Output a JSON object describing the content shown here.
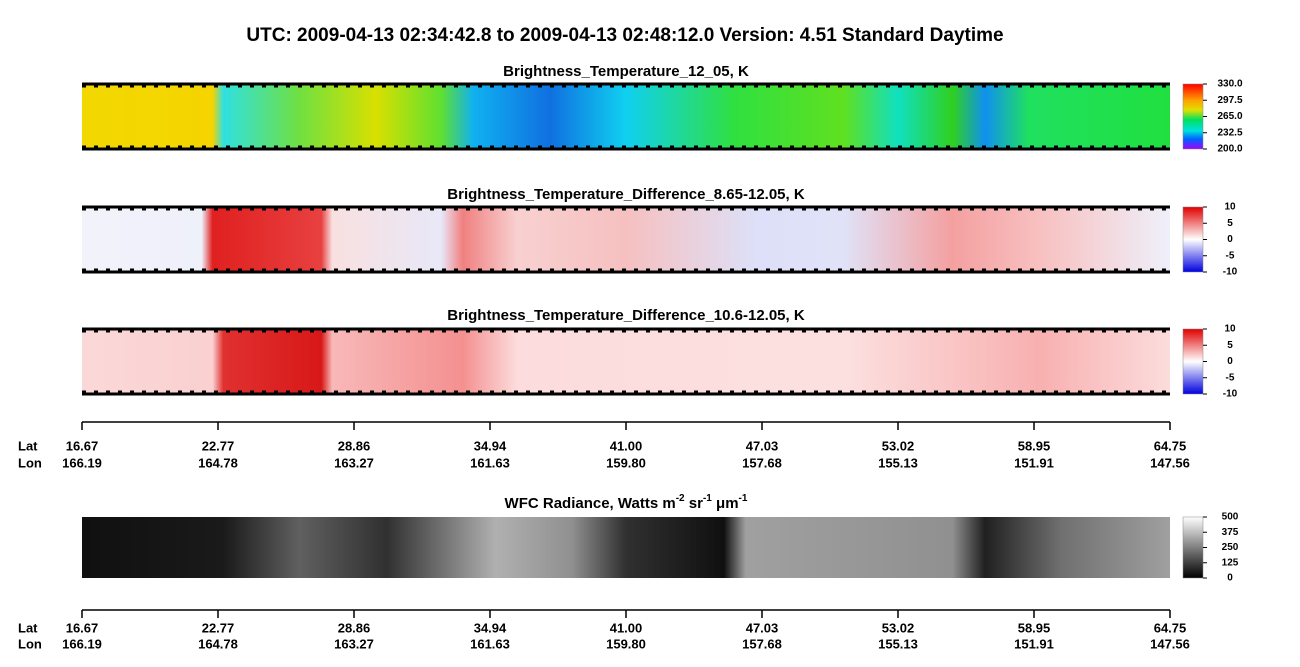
{
  "header": {
    "title": "UTC:  2009-04-13   02:34:42.8  to  2009-04-13   02:48:12.0    Version: 4.51  Standard Daytime"
  },
  "panels": [
    {
      "title_parts": [
        "Brightness_Temperature_12_05, K"
      ],
      "colorbar": [
        "330.0",
        "297.5",
        "265.0",
        "232.5",
        "200.0"
      ]
    },
    {
      "title_parts": [
        "Brightness_Temperature_Difference_8.65-12.05, K"
      ],
      "colorbar": [
        "10",
        "5",
        "0",
        "-5",
        "-10"
      ]
    },
    {
      "title_parts": [
        "Brightness_Temperature_Difference_10.6-12.05, K"
      ],
      "colorbar": [
        "10",
        "5",
        "0",
        "-5",
        "-10"
      ]
    },
    {
      "title_parts": [
        "WFC Radiance, Watts m",
        "-2",
        " sr",
        "-1",
        " μm",
        "-1"
      ],
      "colorbar": [
        "500",
        "375",
        "250",
        "125",
        "0"
      ]
    }
  ],
  "axis": {
    "lat_label": "Lat",
    "lon_label": "Lon",
    "lat": [
      "16.67",
      "22.77",
      "28.86",
      "34.94",
      "41.00",
      "47.03",
      "53.02",
      "58.95",
      "64.75"
    ],
    "lon": [
      "166.19",
      "164.78",
      "163.27",
      "161.63",
      "159.80",
      "157.68",
      "155.13",
      "151.91",
      "147.56"
    ]
  }
}
